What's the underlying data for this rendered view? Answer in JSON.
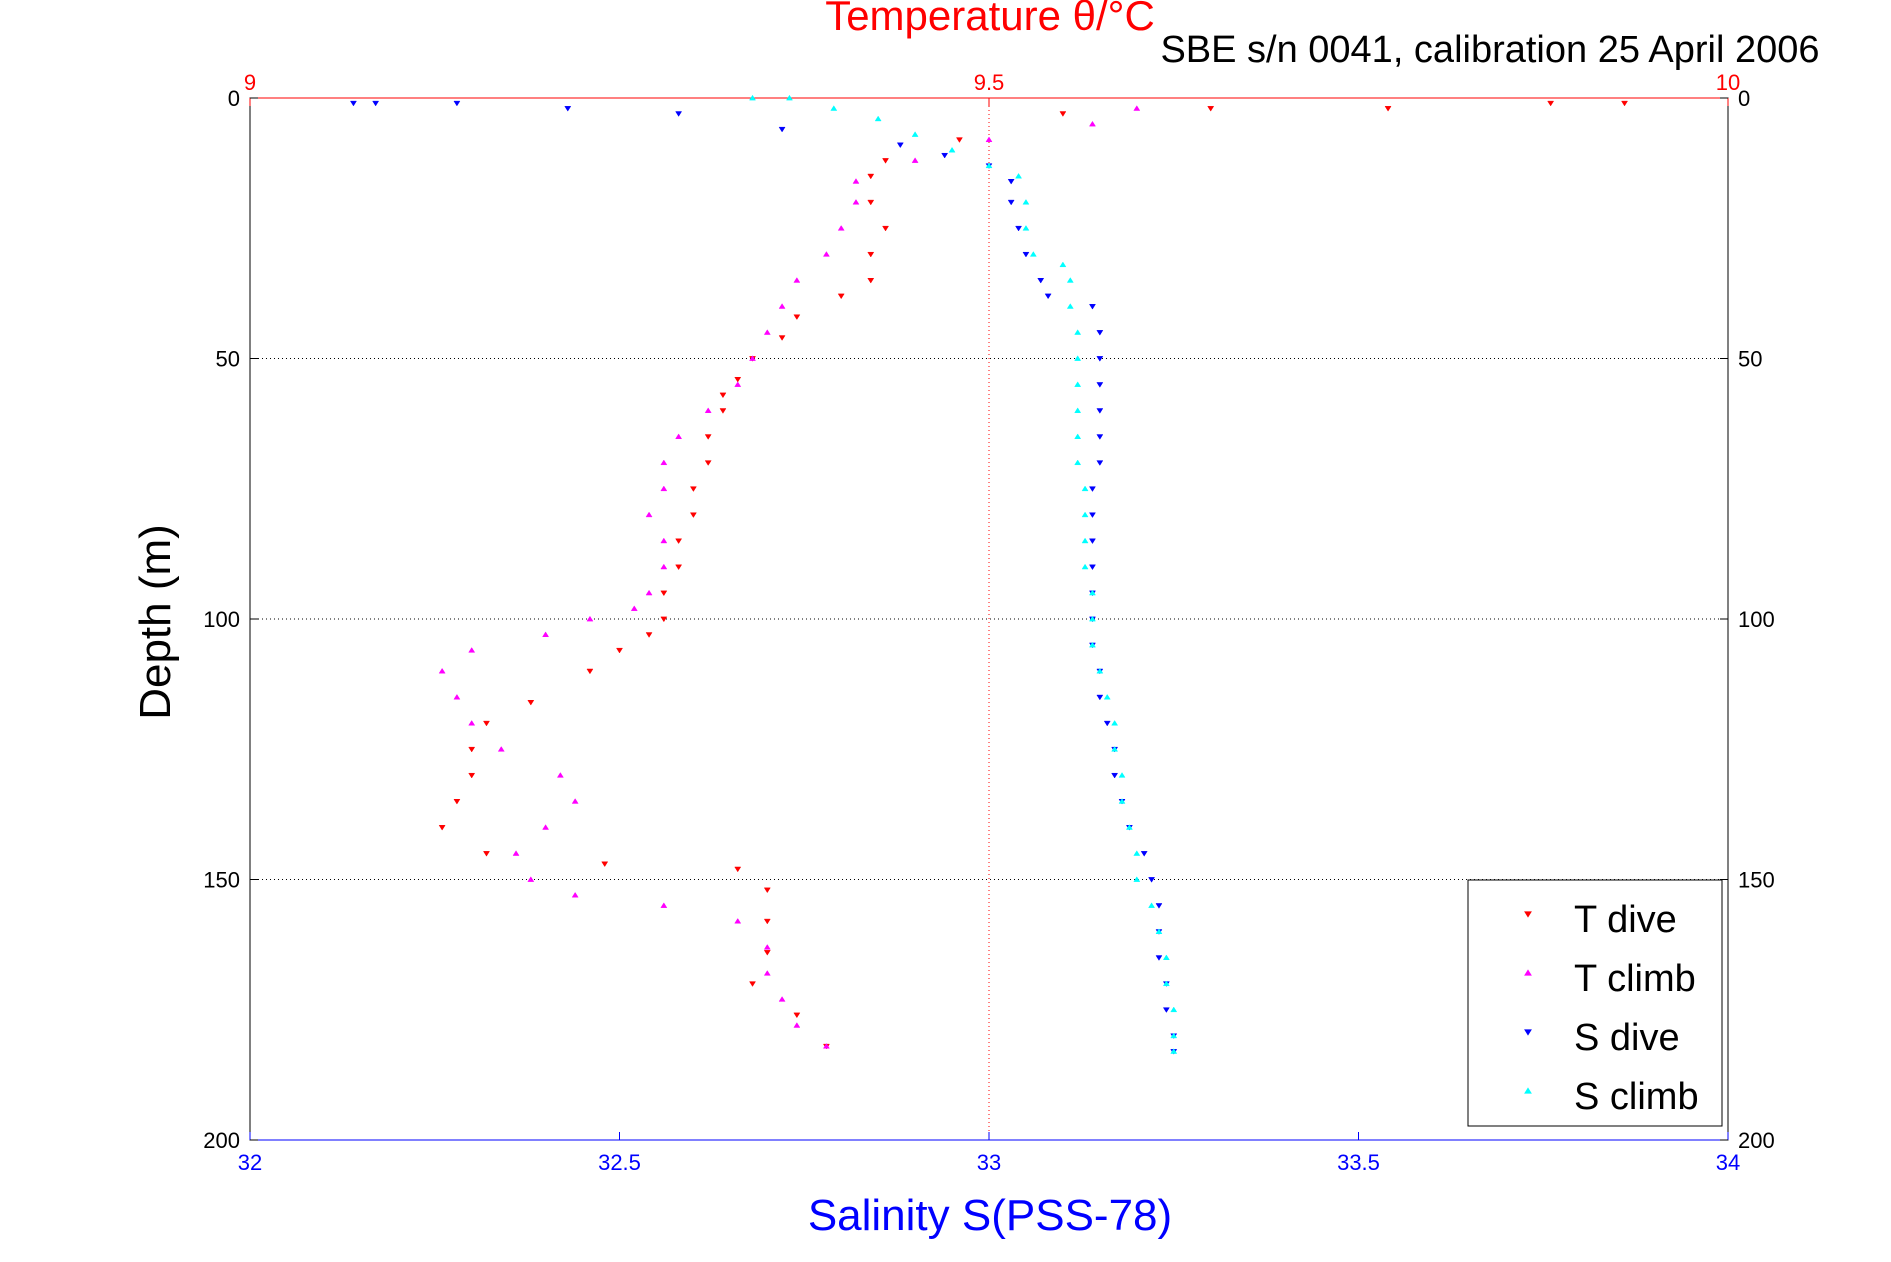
{
  "chart_data": {
    "type": "scatter",
    "title": "Temperature θ/°C",
    "subtitle": "SBE s/n 0041, calibration 25 April 2006",
    "xlabel": "Salinity S(PSS-78)",
    "ylabel": "Depth (m)",
    "axes": {
      "salinity": {
        "label": "Salinity S(PSS-78)",
        "range": [
          32,
          34
        ],
        "ticks": [
          "32",
          "32.5",
          "33",
          "33.5",
          "34"
        ],
        "tick_values": [
          32,
          32.5,
          33,
          33.5,
          34
        ],
        "position": "bottom",
        "color": "#0000ff"
      },
      "temperature": {
        "label": "Temperature θ/°C",
        "range": [
          9,
          10
        ],
        "ticks": [
          "9",
          "9.5",
          "10"
        ],
        "tick_values": [
          9,
          9.5,
          10
        ],
        "position": "top",
        "color": "#ff0000"
      },
      "depth": {
        "label": "Depth (m)",
        "range": [
          0,
          200
        ],
        "reversed": true,
        "ticks": [
          "0",
          "50",
          "100",
          "150",
          "200"
        ],
        "tick_values": [
          0,
          50,
          100,
          150,
          200
        ],
        "position": "left-and-right"
      }
    },
    "grid": {
      "horizontal": true,
      "at_depth": [
        50,
        100,
        150
      ],
      "vertical_reference_at_salinity": 33
    },
    "legend": {
      "placement": "bottom-right",
      "entries": [
        {
          "label": "T dive",
          "color": "#ff0000",
          "marker": "triangle-down"
        },
        {
          "label": "T climb",
          "color": "#ff00ff",
          "marker": "triangle-up"
        },
        {
          "label": "S dive",
          "color": "#0000ff",
          "marker": "triangle-down"
        },
        {
          "label": "S climb",
          "color": "#00ffff",
          "marker": "triangle-up"
        }
      ]
    },
    "series": [
      {
        "name": "T dive",
        "axis": "temperature",
        "color": "#ff0000",
        "marker": "triangle-down",
        "points": [
          [
            9.88,
            1
          ],
          [
            9.93,
            1
          ],
          [
            9.77,
            2
          ],
          [
            9.65,
            2
          ],
          [
            9.55,
            3
          ],
          [
            9.48,
            8
          ],
          [
            9.43,
            12
          ],
          [
            9.42,
            15
          ],
          [
            9.42,
            20
          ],
          [
            9.43,
            25
          ],
          [
            9.42,
            30
          ],
          [
            9.42,
            35
          ],
          [
            9.4,
            38
          ],
          [
            9.37,
            42
          ],
          [
            9.36,
            46
          ],
          [
            9.34,
            50
          ],
          [
            9.33,
            54
          ],
          [
            9.32,
            57
          ],
          [
            9.32,
            60
          ],
          [
            9.31,
            65
          ],
          [
            9.31,
            70
          ],
          [
            9.3,
            75
          ],
          [
            9.3,
            80
          ],
          [
            9.29,
            85
          ],
          [
            9.29,
            90
          ],
          [
            9.28,
            95
          ],
          [
            9.28,
            100
          ],
          [
            9.27,
            103
          ],
          [
            9.25,
            106
          ],
          [
            9.23,
            110
          ],
          [
            9.19,
            116
          ],
          [
            9.16,
            120
          ],
          [
            9.15,
            125
          ],
          [
            9.15,
            130
          ],
          [
            9.14,
            135
          ],
          [
            9.13,
            140
          ],
          [
            9.16,
            145
          ],
          [
            9.24,
            147
          ],
          [
            9.33,
            148
          ],
          [
            9.35,
            152
          ],
          [
            9.35,
            158
          ],
          [
            9.35,
            164
          ],
          [
            9.34,
            170
          ],
          [
            9.37,
            176
          ],
          [
            9.39,
            182
          ]
        ]
      },
      {
        "name": "T climb",
        "axis": "temperature",
        "color": "#ff00ff",
        "marker": "triangle-up",
        "points": [
          [
            9.6,
            2
          ],
          [
            9.57,
            5
          ],
          [
            9.5,
            8
          ],
          [
            9.45,
            12
          ],
          [
            9.41,
            16
          ],
          [
            9.41,
            20
          ],
          [
            9.4,
            25
          ],
          [
            9.39,
            30
          ],
          [
            9.37,
            35
          ],
          [
            9.36,
            40
          ],
          [
            9.35,
            45
          ],
          [
            9.34,
            50
          ],
          [
            9.33,
            55
          ],
          [
            9.31,
            60
          ],
          [
            9.29,
            65
          ],
          [
            9.28,
            70
          ],
          [
            9.28,
            75
          ],
          [
            9.27,
            80
          ],
          [
            9.28,
            85
          ],
          [
            9.28,
            90
          ],
          [
            9.27,
            95
          ],
          [
            9.26,
            98
          ],
          [
            9.23,
            100
          ],
          [
            9.2,
            103
          ],
          [
            9.15,
            106
          ],
          [
            9.13,
            110
          ],
          [
            9.14,
            115
          ],
          [
            9.15,
            120
          ],
          [
            9.17,
            125
          ],
          [
            9.21,
            130
          ],
          [
            9.22,
            135
          ],
          [
            9.2,
            140
          ],
          [
            9.18,
            145
          ],
          [
            9.19,
            150
          ],
          [
            9.22,
            153
          ],
          [
            9.28,
            155
          ],
          [
            9.33,
            158
          ],
          [
            9.35,
            163
          ],
          [
            9.35,
            168
          ],
          [
            9.36,
            173
          ],
          [
            9.37,
            178
          ],
          [
            9.39,
            182
          ]
        ]
      },
      {
        "name": "S dive",
        "axis": "salinity",
        "color": "#0000ff",
        "marker": "triangle-down",
        "points": [
          [
            32.14,
            1
          ],
          [
            32.17,
            1
          ],
          [
            32.28,
            1
          ],
          [
            32.43,
            2
          ],
          [
            32.58,
            3
          ],
          [
            32.72,
            6
          ],
          [
            32.88,
            9
          ],
          [
            32.94,
            11
          ],
          [
            33.0,
            13
          ],
          [
            33.03,
            16
          ],
          [
            33.03,
            20
          ],
          [
            33.04,
            25
          ],
          [
            33.05,
            30
          ],
          [
            33.07,
            35
          ],
          [
            33.08,
            38
          ],
          [
            33.14,
            40
          ],
          [
            33.15,
            45
          ],
          [
            33.15,
            50
          ],
          [
            33.15,
            55
          ],
          [
            33.15,
            60
          ],
          [
            33.15,
            65
          ],
          [
            33.15,
            70
          ],
          [
            33.14,
            75
          ],
          [
            33.14,
            80
          ],
          [
            33.14,
            85
          ],
          [
            33.14,
            90
          ],
          [
            33.14,
            95
          ],
          [
            33.14,
            100
          ],
          [
            33.14,
            105
          ],
          [
            33.15,
            110
          ],
          [
            33.15,
            115
          ],
          [
            33.16,
            120
          ],
          [
            33.17,
            125
          ],
          [
            33.17,
            130
          ],
          [
            33.18,
            135
          ],
          [
            33.19,
            140
          ],
          [
            33.21,
            145
          ],
          [
            33.22,
            150
          ],
          [
            33.23,
            155
          ],
          [
            33.23,
            160
          ],
          [
            33.23,
            165
          ],
          [
            33.24,
            170
          ],
          [
            33.24,
            175
          ],
          [
            33.25,
            180
          ],
          [
            33.25,
            183
          ]
        ]
      },
      {
        "name": "S climb",
        "axis": "salinity",
        "color": "#00ffff",
        "marker": "triangle-up",
        "points": [
          [
            32.68,
            0
          ],
          [
            32.73,
            0
          ],
          [
            32.79,
            2
          ],
          [
            32.85,
            4
          ],
          [
            32.9,
            7
          ],
          [
            32.95,
            10
          ],
          [
            33.0,
            13
          ],
          [
            33.04,
            15
          ],
          [
            33.05,
            20
          ],
          [
            33.05,
            25
          ],
          [
            33.06,
            30
          ],
          [
            33.1,
            32
          ],
          [
            33.11,
            35
          ],
          [
            33.11,
            40
          ],
          [
            33.12,
            45
          ],
          [
            33.12,
            50
          ],
          [
            33.12,
            55
          ],
          [
            33.12,
            60
          ],
          [
            33.12,
            65
          ],
          [
            33.12,
            70
          ],
          [
            33.13,
            75
          ],
          [
            33.13,
            80
          ],
          [
            33.13,
            85
          ],
          [
            33.13,
            90
          ],
          [
            33.14,
            95
          ],
          [
            33.14,
            100
          ],
          [
            33.14,
            105
          ],
          [
            33.15,
            110
          ],
          [
            33.16,
            115
          ],
          [
            33.17,
            120
          ],
          [
            33.17,
            125
          ],
          [
            33.18,
            130
          ],
          [
            33.18,
            135
          ],
          [
            33.19,
            140
          ],
          [
            33.2,
            145
          ],
          [
            33.2,
            150
          ],
          [
            33.22,
            155
          ],
          [
            33.23,
            160
          ],
          [
            33.24,
            165
          ],
          [
            33.24,
            170
          ],
          [
            33.25,
            175
          ],
          [
            33.25,
            180
          ],
          [
            33.25,
            183
          ]
        ]
      }
    ]
  }
}
